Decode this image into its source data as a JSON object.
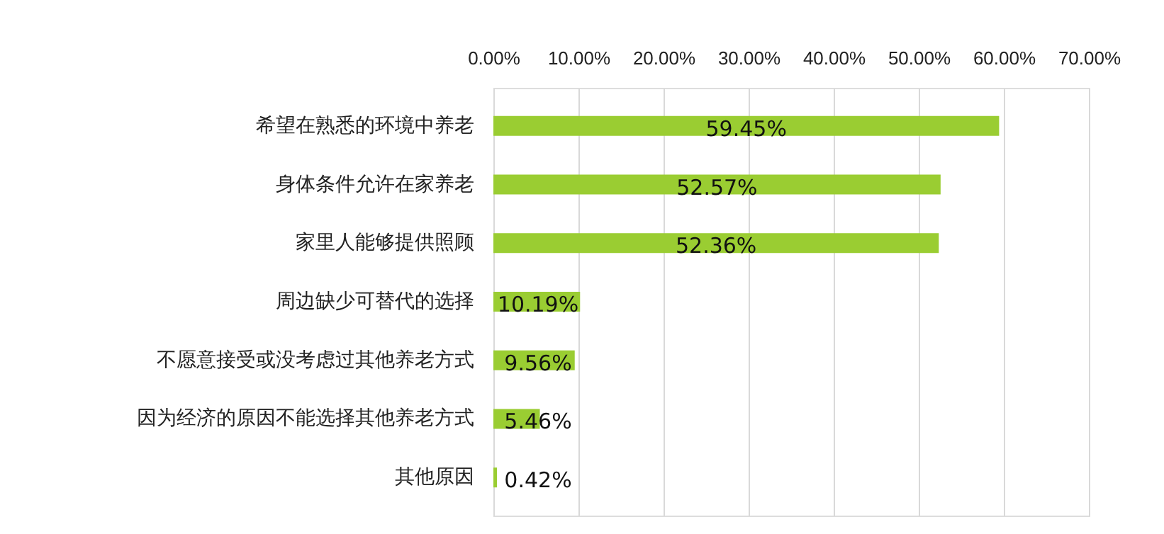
{
  "chart_data": {
    "type": "bar",
    "orientation": "horizontal",
    "categories": [
      "希望在熟悉的环境中养老",
      "身体条件允许在家养老",
      "家里人能够提供照顾",
      "周边缺少可替代的选择",
      "不愿意接受或没考虑过其他养老方式",
      "因为经济的原因不能选择其他养老方式",
      "其他原因"
    ],
    "values": [
      59.45,
      52.57,
      52.36,
      10.19,
      9.56,
      5.46,
      0.42
    ],
    "value_labels": [
      "59.45%",
      "52.57%",
      "52.36%",
      "10.19%",
      "9.56%",
      "5.46%",
      "0.42%"
    ],
    "color": "#9acd32",
    "xlim": [
      0,
      70
    ],
    "xticks": [
      {
        "value": 0,
        "label": "0.00%"
      },
      {
        "value": 10,
        "label": "10.00%"
      },
      {
        "value": 20,
        "label": "20.00%"
      },
      {
        "value": 30,
        "label": "30.00%"
      },
      {
        "value": 40,
        "label": "40.00%"
      },
      {
        "value": 50,
        "label": "50.00%"
      },
      {
        "value": 60,
        "label": "60.00%"
      },
      {
        "value": 70,
        "label": "70.00%"
      }
    ],
    "grid": "x"
  }
}
